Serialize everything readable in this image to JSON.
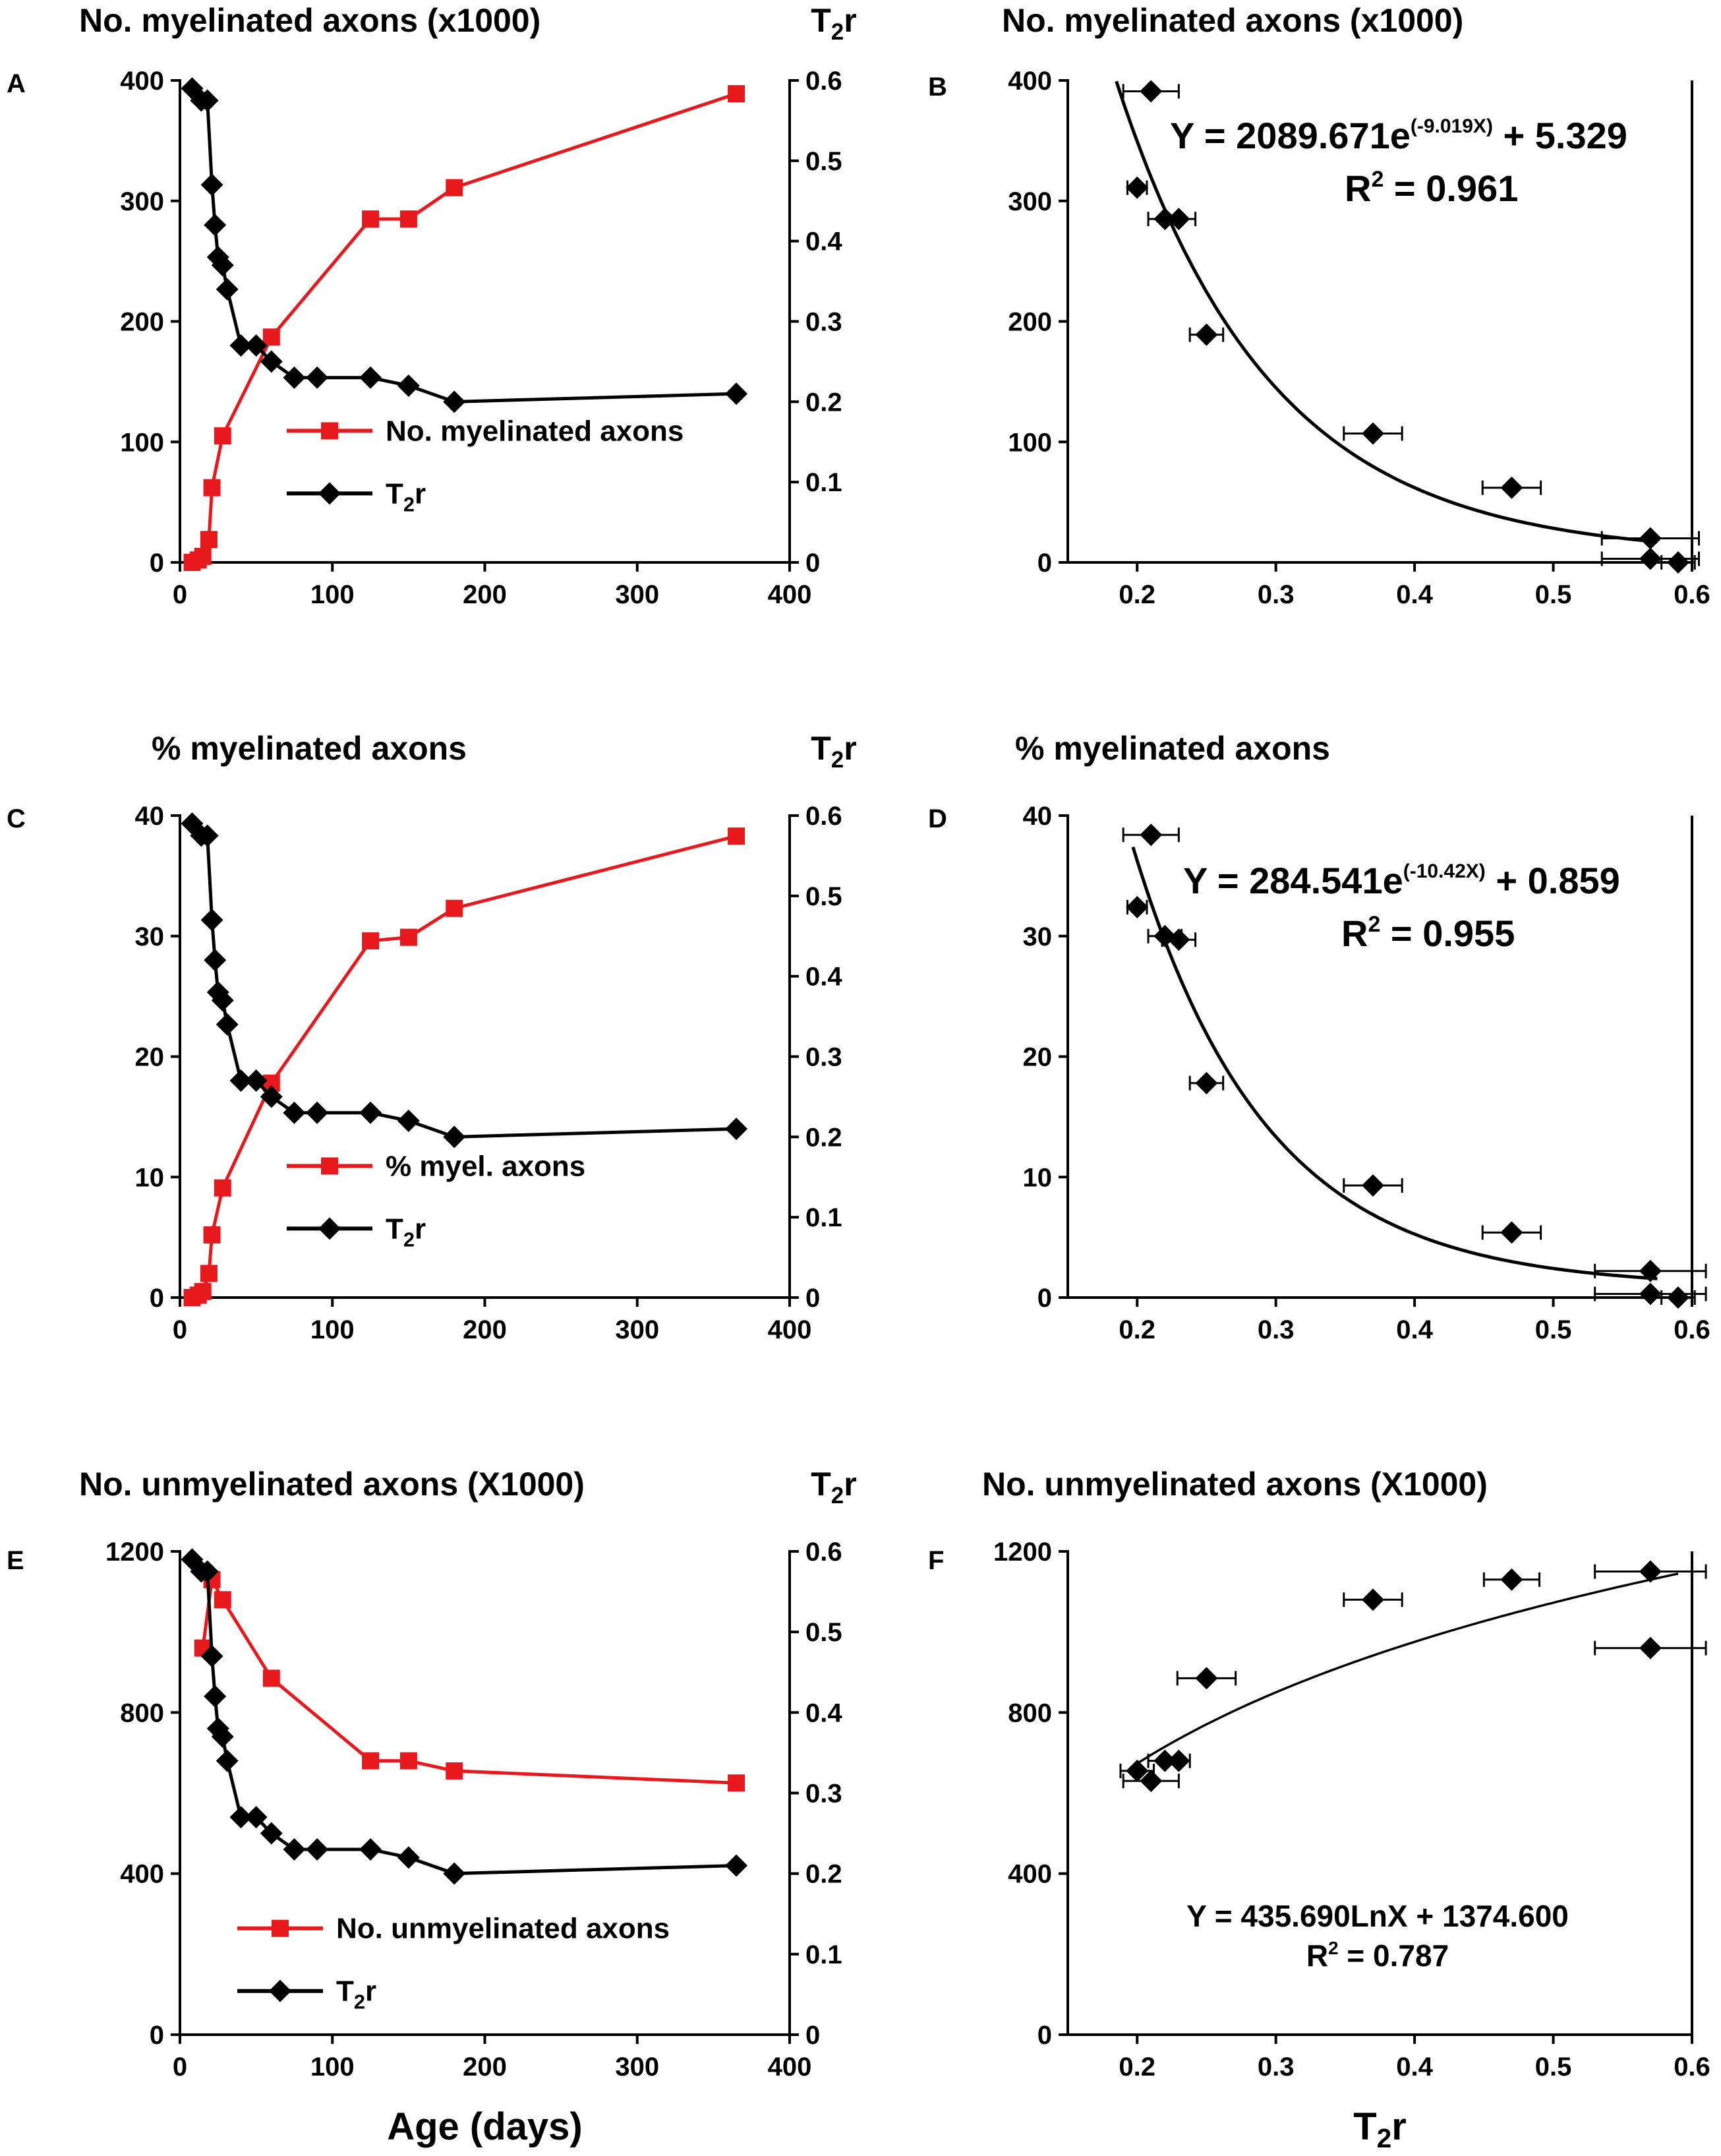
{
  "chart_data": [
    {
      "id": "A",
      "type": "line",
      "panel_label": "A",
      "title": "No. myelinated axons (x1000)",
      "right_title": "T2r",
      "xlabel": "",
      "xlim": [
        0,
        400
      ],
      "xticks": [
        "0",
        "100",
        "200",
        "300",
        "400"
      ],
      "ylim": [
        0,
        400
      ],
      "yticks": [
        "0",
        "100",
        "200",
        "300",
        "400"
      ],
      "y2lim": [
        0,
        0.6
      ],
      "y2ticks": [
        "0",
        "0.1",
        "0.2",
        "0.3",
        "0.4",
        "0.5",
        "0.6"
      ],
      "legend_position": "lower-center",
      "series": [
        {
          "name": "No. myelinated axons",
          "color": "#e8191c",
          "marker": "square",
          "axis": "left",
          "x": [
            8,
            12,
            15,
            19,
            21,
            28,
            60,
            125,
            150,
            180,
            365
          ],
          "values": [
            0,
            2,
            5,
            19,
            62,
            105,
            187,
            285,
            285,
            311,
            389
          ]
        },
        {
          "name": "T2r",
          "color": "#000000",
          "marker": "diamond",
          "axis": "right",
          "x": [
            8,
            14,
            18,
            21,
            23,
            25,
            28,
            31,
            40,
            50,
            60,
            75,
            90,
            125,
            150,
            180,
            365
          ],
          "values": [
            0.59,
            0.575,
            0.575,
            0.47,
            0.42,
            0.38,
            0.37,
            0.34,
            0.27,
            0.27,
            0.25,
            0.23,
            0.23,
            0.23,
            0.22,
            0.2,
            0.21
          ]
        }
      ]
    },
    {
      "id": "B",
      "type": "scatter",
      "panel_label": "B",
      "title": "No. myelinated axons (x1000)",
      "xlabel": "",
      "xlim": [
        0.15,
        0.6
      ],
      "xticks": [
        "0.2",
        "0.3",
        "0.4",
        "0.5",
        "0.6"
      ],
      "ylim": [
        0,
        400
      ],
      "yticks": [
        "0",
        "100",
        "200",
        "300",
        "400"
      ],
      "points": {
        "x": [
          0.21,
          0.2,
          0.22,
          0.23,
          0.25,
          0.37,
          0.47,
          0.57,
          0.57,
          0.59
        ],
        "y": [
          391,
          311,
          285,
          285,
          189,
          107,
          62,
          20,
          3,
          0
        ],
        "xerr": [
          0.02,
          0.007,
          0.012,
          0.012,
          0.012,
          0.021,
          0.021,
          0.035,
          0.035,
          0.012
        ]
      },
      "fit": {
        "kind": "exp",
        "a": 2089.671,
        "b": -9.019,
        "c": 5.329,
        "x_range": [
          0.185,
          0.575
        ]
      },
      "equation": {
        "prefix": "Y = 2089.671e",
        "exponent": "(-9.019X)",
        "suffix": " + 5.329"
      },
      "r2": {
        "label": "R",
        "sup": "2",
        "value": " = 0.961"
      }
    },
    {
      "id": "C",
      "type": "line",
      "panel_label": "C",
      "title": "% myelinated axons",
      "right_title": "T2r",
      "xlabel": "",
      "xlim": [
        0,
        400
      ],
      "xticks": [
        "0",
        "100",
        "200",
        "300",
        "400"
      ],
      "ylim": [
        0,
        40
      ],
      "yticks": [
        "0",
        "10",
        "20",
        "30",
        "40"
      ],
      "y2lim": [
        0,
        0.6
      ],
      "y2ticks": [
        "0",
        "0.1",
        "0.2",
        "0.3",
        "0.4",
        "0.5",
        "0.6"
      ],
      "legend_position": "lower-center",
      "series": [
        {
          "name": "% myel. axons",
          "color": "#e8191c",
          "marker": "square",
          "axis": "left",
          "x": [
            8,
            12,
            15,
            19,
            21,
            28,
            60,
            125,
            150,
            180,
            365
          ],
          "values": [
            0,
            0.2,
            0.5,
            2,
            5.2,
            9.1,
            17.8,
            29.6,
            29.9,
            32.3,
            38.3
          ]
        },
        {
          "name": "T2r",
          "color": "#000000",
          "marker": "diamond",
          "axis": "right",
          "x": [
            8,
            14,
            18,
            21,
            23,
            25,
            28,
            31,
            40,
            50,
            60,
            75,
            90,
            125,
            150,
            180,
            365
          ],
          "values": [
            0.59,
            0.575,
            0.575,
            0.47,
            0.42,
            0.38,
            0.37,
            0.34,
            0.27,
            0.27,
            0.25,
            0.23,
            0.23,
            0.23,
            0.22,
            0.2,
            0.21
          ]
        }
      ]
    },
    {
      "id": "D",
      "type": "scatter",
      "panel_label": "D",
      "title": "% myelinated axons",
      "xlabel": "",
      "xlim": [
        0.15,
        0.6
      ],
      "xticks": [
        "0.2",
        "0.3",
        "0.4",
        "0.5",
        "0.6"
      ],
      "ylim": [
        0,
        40
      ],
      "yticks": [
        "0",
        "10",
        "20",
        "30",
        "40"
      ],
      "points": {
        "x": [
          0.21,
          0.2,
          0.22,
          0.23,
          0.25,
          0.37,
          0.47,
          0.57,
          0.57,
          0.59
        ],
        "y": [
          38.4,
          32.4,
          30,
          29.7,
          17.8,
          9.3,
          5.4,
          2.2,
          0.3,
          0
        ],
        "xerr": [
          0.02,
          0.007,
          0.012,
          0.012,
          0.012,
          0.021,
          0.021,
          0.04,
          0.04,
          0.012
        ]
      },
      "fit": {
        "kind": "exp",
        "a": 284.541,
        "b": -10.42,
        "c": 0.859,
        "x_range": [
          0.197,
          0.575
        ]
      },
      "equation": {
        "prefix": "Y = 284.541e",
        "exponent": "(-10.42X)",
        "suffix": " + 0.859"
      },
      "r2": {
        "label": "R",
        "sup": "2",
        "value": " = 0.955"
      }
    },
    {
      "id": "E",
      "type": "line",
      "panel_label": "E",
      "title": "No. unmyelinated axons (X1000)",
      "right_title": "T2r",
      "xlabel": "Age (days)",
      "xlim": [
        0,
        400
      ],
      "xticks": [
        "0",
        "100",
        "200",
        "300",
        "400"
      ],
      "ylim": [
        0,
        1200
      ],
      "yticks": [
        "0",
        "400",
        "800",
        "1200"
      ],
      "y2lim": [
        0,
        0.6
      ],
      "y2ticks": [
        "0",
        "0.1",
        "0.2",
        "0.3",
        "0.4",
        "0.5",
        "0.6"
      ],
      "legend_position": "lower-left",
      "series": [
        {
          "name": "No. unmyelinated axons",
          "color": "#e8191c",
          "marker": "square",
          "axis": "left",
          "x": [
            15,
            21,
            28,
            60,
            125,
            150,
            180,
            365
          ],
          "values": [
            960,
            1130,
            1080,
            885,
            680,
            680,
            655,
            625
          ]
        },
        {
          "name": "T2r",
          "color": "#000000",
          "marker": "diamond",
          "axis": "right",
          "x": [
            8,
            14,
            18,
            21,
            23,
            25,
            28,
            31,
            40,
            50,
            60,
            75,
            90,
            125,
            150,
            180,
            365
          ],
          "values": [
            0.59,
            0.575,
            0.575,
            0.47,
            0.42,
            0.38,
            0.37,
            0.34,
            0.27,
            0.27,
            0.25,
            0.23,
            0.23,
            0.23,
            0.22,
            0.2,
            0.21
          ]
        }
      ]
    },
    {
      "id": "F",
      "type": "scatter",
      "panel_label": "F",
      "title": "No. unmyelinated axons (X1000)",
      "xlabel": "T2r",
      "xlim": [
        0.15,
        0.6
      ],
      "xticks": [
        "0.2",
        "0.3",
        "0.4",
        "0.5",
        "0.6"
      ],
      "ylim": [
        0,
        1200
      ],
      "yticks": [
        "0",
        "400",
        "800",
        "1200"
      ],
      "points": {
        "x": [
          0.2,
          0.21,
          0.22,
          0.23,
          0.25,
          0.37,
          0.47,
          0.57,
          0.57
        ],
        "y": [
          655,
          630,
          680,
          680,
          885,
          1080,
          1130,
          1150,
          960
        ],
        "xerr": [
          0.012,
          0.02,
          0.012,
          0.008,
          0.021,
          0.021,
          0.02,
          0.04,
          0.04
        ]
      },
      "fit": {
        "kind": "log",
        "a": 435.69,
        "c": 1374.6,
        "x_range": [
          0.2,
          0.59
        ]
      },
      "equation": {
        "prefix": "Y = 435.690LnX + 1374.600",
        "exponent": "",
        "suffix": ""
      },
      "r2": {
        "label": "R",
        "sup": "2",
        "value": " = 0.787"
      }
    }
  ]
}
